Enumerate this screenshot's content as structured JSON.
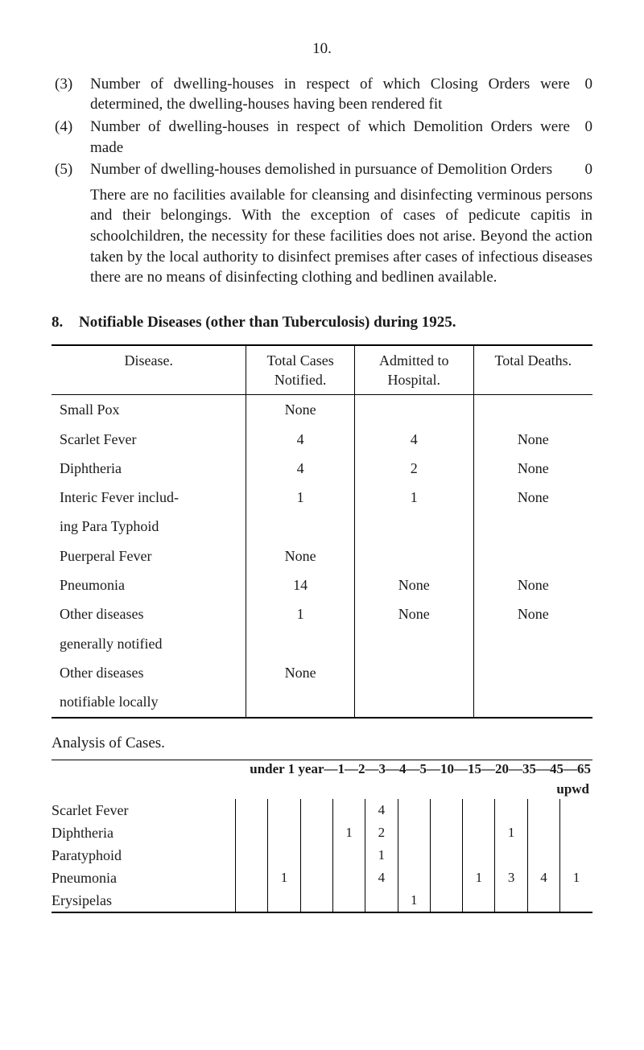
{
  "page_number": "10.",
  "items": [
    {
      "num": "(3)",
      "text": "Number of dwelling-houses in respect of which Closing Orders were determined, the dwelling-houses having been rendered fit",
      "value": "0"
    },
    {
      "num": "(4)",
      "text": "Number of dwelling-houses in respect of which Demolition Orders were made",
      "value": "0"
    },
    {
      "num": "(5)",
      "text": "Number of dwelling-houses demolished in pursuance of Demolition Orders",
      "value": "0"
    }
  ],
  "para": "There are no facilities available for cleansing and disinfecting verminous persons and their belongings. With the exception of cases of pedicute capitis in schoolchildren, the necessity for these facilities does not arise. Beyond the action taken by the local authority to disinfect premises after cases of infectious diseases there are no means of disinfecting clothing and bedlinen available.",
  "section8": {
    "num": "8.",
    "title": "Notifiable Diseases (other than Tuberculosis) during 1925."
  },
  "table1": {
    "headers": {
      "disease": "Disease.",
      "total_cases": "Total Cases Notified.",
      "admitted": "Admitted to Hospital.",
      "deaths": "Total Deaths."
    },
    "rows": [
      {
        "disease": "Small Pox",
        "tc": "None",
        "adm": "",
        "td": ""
      },
      {
        "disease": "Scarlet Fever",
        "tc": "4",
        "adm": "4",
        "td": "None"
      },
      {
        "disease": "Diphtheria",
        "tc": "4",
        "adm": "2",
        "td": "None"
      },
      {
        "disease": "Interic Fever includ-",
        "tc": "1",
        "adm": "1",
        "td": "None"
      },
      {
        "disease": "ing Para Typhoid",
        "tc": "",
        "adm": "",
        "td": ""
      },
      {
        "disease": "Puerperal Fever",
        "tc": "None",
        "adm": "",
        "td": ""
      },
      {
        "disease": "Pneumonia",
        "tc": "14",
        "adm": "None",
        "td": "None"
      },
      {
        "disease": "Other diseases",
        "tc": "1",
        "adm": "None",
        "td": "None"
      },
      {
        "disease": "generally notified",
        "tc": "",
        "adm": "",
        "td": ""
      },
      {
        "disease": "Other diseases",
        "tc": "None",
        "adm": "",
        "td": ""
      },
      {
        "disease": "notifiable locally",
        "tc": "",
        "adm": "",
        "td": ""
      }
    ]
  },
  "analysis_heading": "Analysis of Cases.",
  "table2": {
    "header_line": "under 1 year—1—2—3—4—5—10—15—20—35—45—65",
    "upwd": "upwd",
    "labels": [
      "Scarlet Fever",
      "Diphtheria",
      "Paratyphoid",
      "Pneumonia",
      "Erysipelas"
    ],
    "cells": [
      [
        "",
        "",
        "",
        "",
        "",
        "4",
        "",
        "",
        "",
        "",
        "",
        ""
      ],
      [
        "",
        "",
        "",
        "",
        "1",
        "2",
        "",
        "",
        "",
        "1",
        "",
        ""
      ],
      [
        "",
        "",
        "",
        "",
        "",
        "1",
        "",
        "",
        "",
        "",
        "",
        ""
      ],
      [
        "",
        "",
        "1",
        "",
        "",
        "4",
        "",
        "",
        "1",
        "3",
        "4",
        "1"
      ],
      [
        "",
        "",
        "",
        "",
        "",
        "",
        "1",
        "",
        "",
        "",
        "",
        ""
      ]
    ]
  },
  "colors": {
    "text": "#1a1a1a",
    "background": "#ffffff",
    "rule": "#000000"
  }
}
